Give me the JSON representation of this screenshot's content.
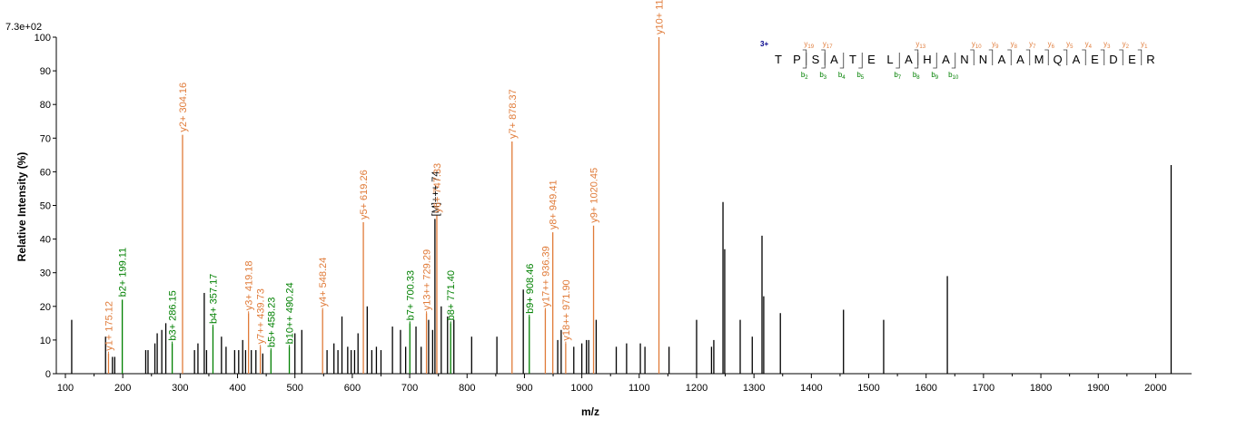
{
  "chart_data": {
    "type": "bar",
    "max_intensity_label": "7.3e+02",
    "xlabel": "m/z",
    "ylabel": "Relative   Intensity (%)",
    "xlim": [
      95,
      2060
    ],
    "ylim": [
      0,
      100
    ],
    "xticks": [
      100,
      200,
      300,
      400,
      500,
      600,
      700,
      800,
      900,
      1000,
      1100,
      1200,
      1300,
      1400,
      1500,
      1600,
      1700,
      1800,
      1900,
      2000
    ],
    "yticks": [
      0,
      10,
      20,
      30,
      40,
      50,
      60,
      70,
      80,
      90,
      100
    ],
    "colors": {
      "y": "#e07b39",
      "b": "#008000",
      "other": "#000000",
      "seq_charge": "#00008b"
    },
    "peaks": [
      {
        "mz": 111,
        "i": 16
      },
      {
        "mz": 170,
        "i": 11
      },
      {
        "mz": 175.12,
        "i": 6,
        "ion": "y",
        "label": "y1+ 175.12"
      },
      {
        "mz": 182,
        "i": 5
      },
      {
        "mz": 186,
        "i": 5
      },
      {
        "mz": 199.11,
        "i": 22,
        "ion": "b",
        "label": "b2+ 199.11"
      },
      {
        "mz": 240,
        "i": 7
      },
      {
        "mz": 244,
        "i": 7
      },
      {
        "mz": 256,
        "i": 9
      },
      {
        "mz": 260,
        "i": 12
      },
      {
        "mz": 268,
        "i": 13
      },
      {
        "mz": 275,
        "i": 15
      },
      {
        "mz": 286.15,
        "i": 9,
        "ion": "b",
        "label": "b3+ 286.15"
      },
      {
        "mz": 304.16,
        "i": 71,
        "ion": "y",
        "label": "y2+ 304.16"
      },
      {
        "mz": 325,
        "i": 7
      },
      {
        "mz": 331,
        "i": 9
      },
      {
        "mz": 342,
        "i": 24
      },
      {
        "mz": 346,
        "i": 7
      },
      {
        "mz": 357.17,
        "i": 14,
        "ion": "b",
        "label": "b4+ 357.17"
      },
      {
        "mz": 372,
        "i": 11
      },
      {
        "mz": 380,
        "i": 8
      },
      {
        "mz": 395,
        "i": 7
      },
      {
        "mz": 402,
        "i": 7
      },
      {
        "mz": 409,
        "i": 10
      },
      {
        "mz": 414,
        "i": 7
      },
      {
        "mz": 419.18,
        "i": 18,
        "ion": "y",
        "label": "y3+ 419.18"
      },
      {
        "mz": 424,
        "i": 7
      },
      {
        "mz": 432,
        "i": 7
      },
      {
        "mz": 439.73,
        "i": 8,
        "ion": "y",
        "label": "y7++ 439.73"
      },
      {
        "mz": 444,
        "i": 6
      },
      {
        "mz": 458.23,
        "i": 7,
        "ion": "b",
        "label": "b5+ 458.23"
      },
      {
        "mz": 490.24,
        "i": 8,
        "ion": "b",
        "label": "b10++ 490.24"
      },
      {
        "mz": 500,
        "i": 12
      },
      {
        "mz": 512,
        "i": 13
      },
      {
        "mz": 548.24,
        "i": 19,
        "ion": "y",
        "label": "y4+ 548.24"
      },
      {
        "mz": 556,
        "i": 7
      },
      {
        "mz": 568,
        "i": 9
      },
      {
        "mz": 575,
        "i": 7
      },
      {
        "mz": 582,
        "i": 17
      },
      {
        "mz": 592,
        "i": 8
      },
      {
        "mz": 598,
        "i": 7
      },
      {
        "mz": 604,
        "i": 7
      },
      {
        "mz": 610,
        "i": 12
      },
      {
        "mz": 619.26,
        "i": 45,
        "ion": "y",
        "label": "y5+ 619.26"
      },
      {
        "mz": 626,
        "i": 20
      },
      {
        "mz": 634,
        "i": 7
      },
      {
        "mz": 642,
        "i": 8
      },
      {
        "mz": 650,
        "i": 7
      },
      {
        "mz": 670,
        "i": 14
      },
      {
        "mz": 684,
        "i": 13
      },
      {
        "mz": 693,
        "i": 8
      },
      {
        "mz": 700.33,
        "i": 15,
        "ion": "b",
        "label": "b7+ 700.33"
      },
      {
        "mz": 711,
        "i": 14
      },
      {
        "mz": 720,
        "i": 8
      },
      {
        "mz": 729.29,
        "i": 18,
        "ion": "y",
        "label": "y13++ 729.29"
      },
      {
        "mz": 733,
        "i": 16
      },
      {
        "mz": 740,
        "i": 13
      },
      {
        "mz": 744,
        "i": 46,
        "ion": "other",
        "label": "[M]+++ 74"
      },
      {
        "mz": 747.33,
        "i": 47,
        "ion": "y",
        "label": "y6+ 747.33"
      },
      {
        "mz": 755,
        "i": 20
      },
      {
        "mz": 766,
        "i": 17
      },
      {
        "mz": 771.4,
        "i": 15,
        "ion": "b",
        "label": "b8+ 771.40"
      },
      {
        "mz": 777,
        "i": 16
      },
      {
        "mz": 808,
        "i": 11
      },
      {
        "mz": 852,
        "i": 11
      },
      {
        "mz": 878.37,
        "i": 69,
        "ion": "y",
        "label": "y7+ 878.37"
      },
      {
        "mz": 898,
        "i": 25
      },
      {
        "mz": 908.46,
        "i": 17,
        "ion": "b",
        "label": "b9+ 908.46"
      },
      {
        "mz": 936.39,
        "i": 19,
        "ion": "y",
        "label": "y17++ 936.39"
      },
      {
        "mz": 949.41,
        "i": 42,
        "ion": "y",
        "label": "y8+ 949.41"
      },
      {
        "mz": 958,
        "i": 10
      },
      {
        "mz": 964,
        "i": 13
      },
      {
        "mz": 971.9,
        "i": 9,
        "ion": "y",
        "label": "y18++ 971.90"
      },
      {
        "mz": 986,
        "i": 8
      },
      {
        "mz": 1000,
        "i": 9
      },
      {
        "mz": 1008,
        "i": 10
      },
      {
        "mz": 1012,
        "i": 10
      },
      {
        "mz": 1020.45,
        "i": 44,
        "ion": "y",
        "label": "y9+ 1020.45"
      },
      {
        "mz": 1025,
        "i": 16
      },
      {
        "mz": 1060,
        "i": 8
      },
      {
        "mz": 1078,
        "i": 9
      },
      {
        "mz": 1102,
        "i": 9
      },
      {
        "mz": 1110,
        "i": 8
      },
      {
        "mz": 1134.4,
        "i": 100,
        "ion": "y",
        "label": "y10+ 1134.4"
      },
      {
        "mz": 1152,
        "i": 8
      },
      {
        "mz": 1200,
        "i": 16
      },
      {
        "mz": 1226,
        "i": 8
      },
      {
        "mz": 1230,
        "i": 10
      },
      {
        "mz": 1246,
        "i": 51
      },
      {
        "mz": 1249,
        "i": 37
      },
      {
        "mz": 1276,
        "i": 16
      },
      {
        "mz": 1297,
        "i": 11
      },
      {
        "mz": 1314,
        "i": 41
      },
      {
        "mz": 1317,
        "i": 23
      },
      {
        "mz": 1346,
        "i": 18
      },
      {
        "mz": 1456,
        "i": 19
      },
      {
        "mz": 1526,
        "i": 16
      },
      {
        "mz": 1637,
        "i": 29
      },
      {
        "mz": 2027,
        "i": 62
      }
    ],
    "sequence": {
      "charge": "3+",
      "residues": [
        "T",
        "P",
        "S",
        "A",
        "T",
        "E",
        "L",
        "A",
        "H",
        "A",
        "N",
        "N",
        "A",
        "A",
        "M",
        "Q",
        "A",
        "E",
        "D",
        "E",
        "R"
      ],
      "y_ions": [
        {
          "after": 2,
          "text": "y19"
        },
        {
          "after": 3,
          "text": "y17"
        },
        {
          "after": 8,
          "text": "y13"
        },
        {
          "after": 11,
          "text": "y10"
        },
        {
          "after": 12,
          "text": "y9"
        },
        {
          "after": 13,
          "text": "y8"
        },
        {
          "after": 14,
          "text": "y7"
        },
        {
          "after": 15,
          "text": "y6"
        },
        {
          "after": 16,
          "text": "y5"
        },
        {
          "after": 17,
          "text": "y4"
        },
        {
          "after": 18,
          "text": "y3"
        },
        {
          "after": 19,
          "text": "y2"
        },
        {
          "after": 20,
          "text": "y1"
        }
      ],
      "b_ions": [
        {
          "after": 2,
          "text": "b2"
        },
        {
          "after": 3,
          "text": "b3"
        },
        {
          "after": 4,
          "text": "b4"
        },
        {
          "after": 5,
          "text": "b5"
        },
        {
          "after": 7,
          "text": "b7"
        },
        {
          "after": 8,
          "text": "b8"
        },
        {
          "after": 9,
          "text": "b9"
        },
        {
          "after": 10,
          "text": "b10"
        }
      ]
    }
  }
}
